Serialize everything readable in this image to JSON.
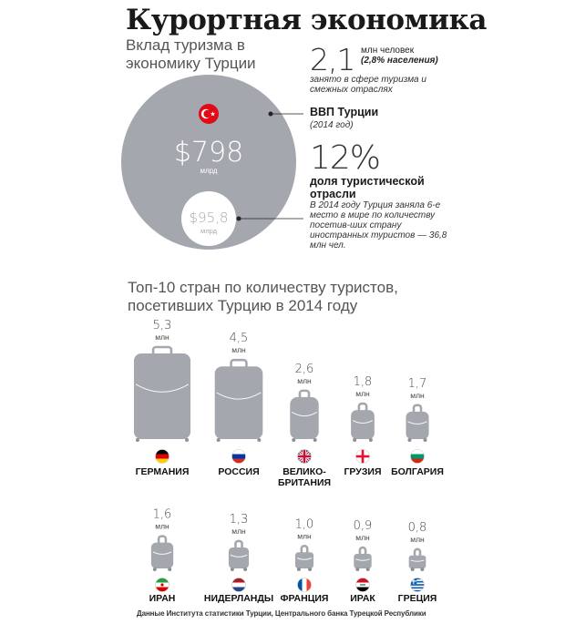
{
  "header": {
    "title": "Курортная экономика",
    "subtitle": "Вклад туризма в экономику Турции"
  },
  "employment": {
    "value": "2,1",
    "unit": "млн человек",
    "share": "(2,8% населения)",
    "description": "занято в сфере туризма и смежных отраслях"
  },
  "gdp": {
    "value": "$798",
    "unit": "млрд",
    "label": "ВВП Турции",
    "year": "(2014 год)"
  },
  "tourism": {
    "value": "$95,8",
    "unit": "млрд",
    "share": "12%",
    "share_label": "доля туристической отрасли",
    "description": "В 2014 году Турция заняла 6-е место в мире по количеству посетив-ших страну иностранных туристов — 36,8 млн чел."
  },
  "colors": {
    "circle": "#a4a8ae",
    "suitcase": "#a4a8ae",
    "flag_turkey": "#e30a17"
  },
  "chart_data": {
    "type": "bar",
    "title": "Топ-10 стран по количеству туристов, посетивших Турцию в 2014 году",
    "unit": "млн",
    "categories": [
      "ГЕРМАНИЯ",
      "РОССИЯ",
      "ВЕЛИКО-БРИТАНИЯ",
      "ГРУЗИЯ",
      "БОЛГАРИЯ",
      "ИРАН",
      "НИДЕРЛАНДЫ",
      "ФРАНЦИЯ",
      "ИРАК",
      "ГРЕЦИЯ"
    ],
    "values": [
      5.3,
      4.5,
      2.6,
      1.8,
      1.7,
      1.6,
      1.3,
      1.0,
      0.9,
      0.8
    ],
    "value_labels": [
      "5,3",
      "4,5",
      "2,6",
      "1,8",
      "1,7",
      "1,6",
      "1,3",
      "1,0",
      "0,9",
      "0,8"
    ],
    "flags": [
      "germany-flag-icon",
      "russia-flag-icon",
      "uk-flag-icon",
      "georgia-flag-icon",
      "bulgaria-flag-icon",
      "iran-flag-icon",
      "netherlands-flag-icon",
      "france-flag-icon",
      "iraq-flag-icon",
      "greece-flag-icon"
    ]
  },
  "source": "Данные Института статистики Турции, Центрального банка Турецкой Республики"
}
